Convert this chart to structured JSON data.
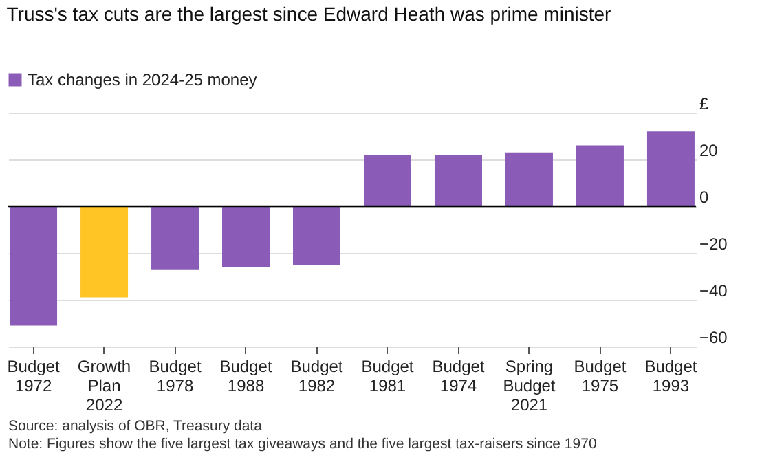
{
  "chart_data": {
    "type": "bar",
    "title": "Truss's tax cuts are the largest since Edward Heath was prime minister",
    "categories": [
      "Budget 1972",
      "Growth Plan 2022",
      "Budget 1978",
      "Budget 1988",
      "Budget 1982",
      "Budget 1981",
      "Budget 1974",
      "Spring Budget 2021",
      "Budget 1975",
      "Budget 1993"
    ],
    "series": [
      {
        "name": "Tax changes in 2024-25 money",
        "color": "#8a5cb8",
        "values": [
          -51,
          -39,
          -27,
          -26,
          -25,
          22,
          22,
          23,
          26,
          32
        ],
        "colors": [
          "#8a5cb8",
          "#fec524",
          "#8a5cb8",
          "#8a5cb8",
          "#8a5cb8",
          "#8a5cb8",
          "#8a5cb8",
          "#8a5cb8",
          "#8a5cb8",
          "#8a5cb8"
        ]
      }
    ],
    "ylim": [
      -60,
      40
    ],
    "yticks": [
      -60,
      -40,
      -20,
      0,
      20,
      {
        "value": 40,
        "label": "£"
      }
    ],
    "grid": "y",
    "legend": "top left",
    "ref_lines": [
      {
        "axis": "y",
        "value": 0,
        "label": null,
        "color": "#000000"
      }
    ],
    "annotations": [
      "Source: analysis of OBR, Treasury data",
      "Note: Figures show the five largest tax giveaways and the five largest tax-raisers since 1970"
    ]
  }
}
